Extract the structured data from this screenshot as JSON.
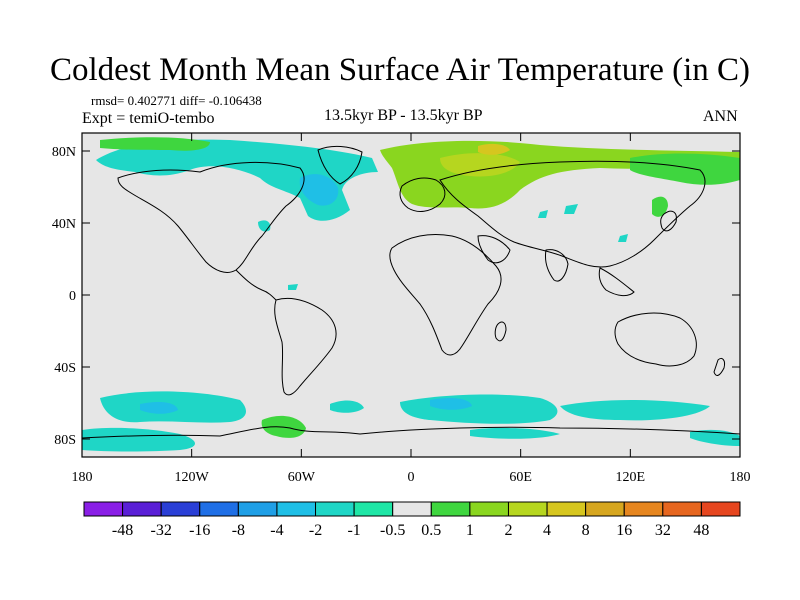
{
  "title": "Coldest Month Mean Surface Air Temperature (in C)",
  "stats_text": "rmsd= 0.402771  diff= -0.106438",
  "experiment_text": "Expt = temiO-tembo",
  "center_text": "13.5kyr BP - 13.5kyr BP",
  "season": "ANN",
  "map": {
    "projection": "cylindrical equidistant",
    "lon_range": [
      -180,
      180
    ],
    "lat_range": [
      -90,
      90
    ],
    "background_color": "#e6e6e6",
    "x_ticks": [
      {
        "value": -180,
        "label": "180"
      },
      {
        "value": -120,
        "label": "120W"
      },
      {
        "value": -60,
        "label": "60W"
      },
      {
        "value": 0,
        "label": "0"
      },
      {
        "value": 60,
        "label": "60E"
      },
      {
        "value": 120,
        "label": "120E"
      },
      {
        "value": 180,
        "label": "180"
      }
    ],
    "y_ticks": [
      {
        "value": 80,
        "label": "80N"
      },
      {
        "value": 40,
        "label": "40N"
      },
      {
        "value": 0,
        "label": "0"
      },
      {
        "value": -40,
        "label": "40S"
      },
      {
        "value": -80,
        "label": "80S"
      }
    ]
  },
  "colorbar": {
    "colors": [
      "#8a1fe6",
      "#5a1fd6",
      "#2a3fd6",
      "#1f6fe6",
      "#1f9fe6",
      "#1fbfe6",
      "#1fd6c6",
      "#1fe6a6",
      "#e6e6e6",
      "#3fd63f",
      "#8ad61f",
      "#b6d61f",
      "#d6c61f",
      "#d6a61f",
      "#e6861f",
      "#e6661f",
      "#e6461f"
    ],
    "labels": [
      "-48",
      "-32",
      "-16",
      "-8",
      "-4",
      "-2",
      "-1",
      "-0.5",
      "0.5",
      "1",
      "2",
      "4",
      "8",
      "16",
      "32",
      "48"
    ]
  }
}
